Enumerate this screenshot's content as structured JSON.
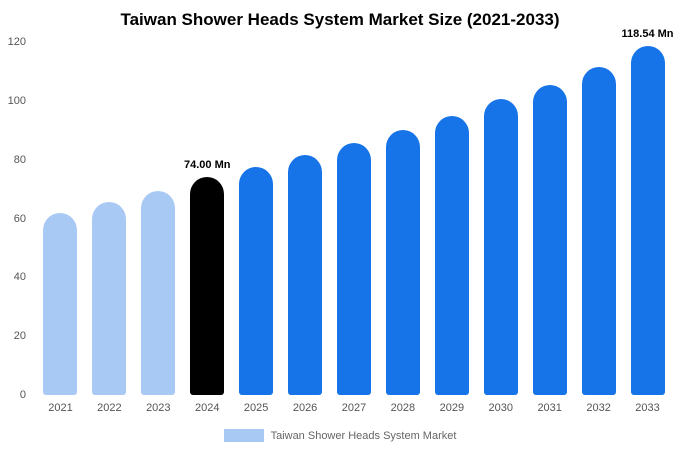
{
  "title": "Taiwan Shower Heads System Market Size (2021-2033)",
  "legend": {
    "label": "Taiwan Shower Heads System Market",
    "swatch_color": "#a9c9f5"
  },
  "colors": {
    "historical": "#a9c9f5",
    "base_year": "#000000",
    "forecast": "#1774e8",
    "axis_text": "#555555",
    "background": "#ffffff"
  },
  "annotations": [
    {
      "category": "2024",
      "text": "74.00 Mn"
    },
    {
      "category": "2033",
      "text": "118.54 Mn"
    }
  ],
  "chart_data": {
    "type": "bar",
    "title": "Taiwan Shower Heads System Market Size (2021-2033)",
    "categories": [
      "2021",
      "2022",
      "2023",
      "2024",
      "2025",
      "2026",
      "2027",
      "2028",
      "2029",
      "2030",
      "2031",
      "2032",
      "2033"
    ],
    "values": [
      62,
      65.5,
      69.5,
      74.0,
      77.5,
      81.5,
      85.5,
      90,
      95,
      100.5,
      105.5,
      111.5,
      118.54
    ],
    "bar_colors": [
      "#a9c9f5",
      "#a9c9f5",
      "#a9c9f5",
      "#000000",
      "#1774e8",
      "#1774e8",
      "#1774e8",
      "#1774e8",
      "#1774e8",
      "#1774e8",
      "#1774e8",
      "#1774e8",
      "#1774e8"
    ],
    "xlabel": "",
    "ylabel": "",
    "ylim": [
      0,
      120
    ],
    "yticks": [
      0,
      20,
      40,
      60,
      80,
      100,
      120
    ],
    "grid": false,
    "legend_position": "bottom",
    "unit": "Mn"
  }
}
